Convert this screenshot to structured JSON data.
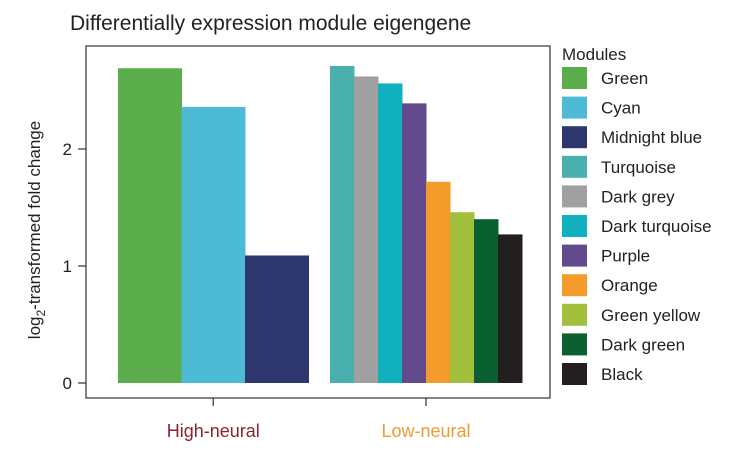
{
  "chart_data": {
    "type": "bar",
    "title": "Differentially expression module eigengene",
    "ylabel": "log2-transformed fold change",
    "ylabel_prefix": "log",
    "ylabel_sub": "2",
    "ylabel_suffix": "-transformed fold change",
    "ylim": [
      0,
      2.85
    ],
    "yticks": [
      "0",
      "1",
      "2"
    ],
    "legend_title": "Modules",
    "legend_position": "right",
    "grid": false,
    "groups": [
      {
        "name": "High-neural",
        "color": "#8b2332",
        "bars": [
          {
            "module": "Green",
            "value": 2.69,
            "color": "#5aad4a"
          },
          {
            "module": "Cyan",
            "value": 2.36,
            "color": "#4dbbd5"
          },
          {
            "module": "Midnight blue",
            "value": 1.09,
            "color": "#2e376d"
          }
        ]
      },
      {
        "name": "Low-neural",
        "color": "#eb9a36",
        "bars": [
          {
            "module": "Turquoise",
            "value": 2.71,
            "color": "#4ab0ae"
          },
          {
            "module": "Dark grey",
            "value": 2.62,
            "color": "#a0a0a0"
          },
          {
            "module": "Dark turquoise",
            "value": 2.56,
            "color": "#10b0be"
          },
          {
            "module": "Purple",
            "value": 2.39,
            "color": "#634a8c"
          },
          {
            "module": "Orange",
            "value": 1.72,
            "color": "#f39c2b"
          },
          {
            "module": "Green yellow",
            "value": 1.46,
            "color": "#a2c03b"
          },
          {
            "module": "Dark green",
            "value": 1.4,
            "color": "#0a6030"
          },
          {
            "module": "Black",
            "value": 1.27,
            "color": "#231f20"
          }
        ]
      }
    ],
    "legend": [
      {
        "label": "Green",
        "color": "#5aad4a"
      },
      {
        "label": "Cyan",
        "color": "#4dbbd5"
      },
      {
        "label": "Midnight blue",
        "color": "#2e376d"
      },
      {
        "label": "Turquoise",
        "color": "#4ab0ae"
      },
      {
        "label": "Dark grey",
        "color": "#a0a0a0"
      },
      {
        "label": "Dark turquoise",
        "color": "#10b0be"
      },
      {
        "label": "Purple",
        "color": "#634a8c"
      },
      {
        "label": "Orange",
        "color": "#f39c2b"
      },
      {
        "label": "Green yellow",
        "color": "#a2c03b"
      },
      {
        "label": "Dark green",
        "color": "#0a6030"
      },
      {
        "label": "Black",
        "color": "#231f20"
      }
    ]
  }
}
